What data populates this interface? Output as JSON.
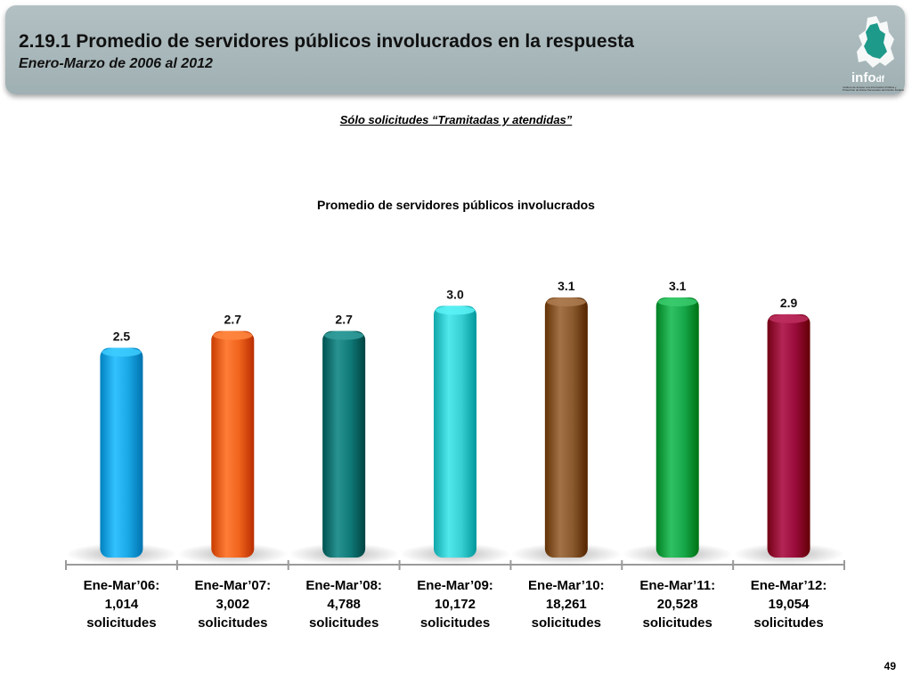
{
  "header": {
    "title": "2.19.1 Promedio de servidores públicos involucrados en la respuesta",
    "subtitle": "Enero-Marzo de 2006 al 2012",
    "logo_text": "info",
    "logo_suffix": "df",
    "logo_caption": "Instituto de Acceso a la Información Pública y Protección de Datos Personales del Distrito Federal"
  },
  "note": "Sólo solicitudes “Tramitadas y atendidas”",
  "chart_data": {
    "type": "bar",
    "title": "Promedio de servidores públicos involucrados",
    "categories": [
      [
        "Ene-Mar’06:",
        "1,014",
        "solicitudes"
      ],
      [
        "Ene-Mar’07:",
        "3,002",
        "solicitudes"
      ],
      [
        "Ene-Mar’08:",
        "4,788",
        "solicitudes"
      ],
      [
        "Ene-Mar’09:",
        "10,172",
        "solicitudes"
      ],
      [
        "Ene-Mar’10:",
        "18,261",
        "solicitudes"
      ],
      [
        "Ene-Mar’11:",
        "20,528",
        "solicitudes"
      ],
      [
        "Ene-Mar’12:",
        "19,054",
        "solicitudes"
      ]
    ],
    "values": [
      2.5,
      2.7,
      2.7,
      3.0,
      3.1,
      3.1,
      2.9
    ],
    "value_labels": [
      "2.5",
      "2.7",
      "2.7",
      "3.0",
      "3.1",
      "3.1",
      "2.9"
    ],
    "colors": [
      "#1aa9e6",
      "#f0641e",
      "#0f7a78",
      "#38cfd3",
      "#8a5a2e",
      "#16a84a",
      "#9a0c3c"
    ],
    "ylim": [
      0,
      3.1
    ],
    "grid": false,
    "legend": "none"
  },
  "page_number": "49"
}
